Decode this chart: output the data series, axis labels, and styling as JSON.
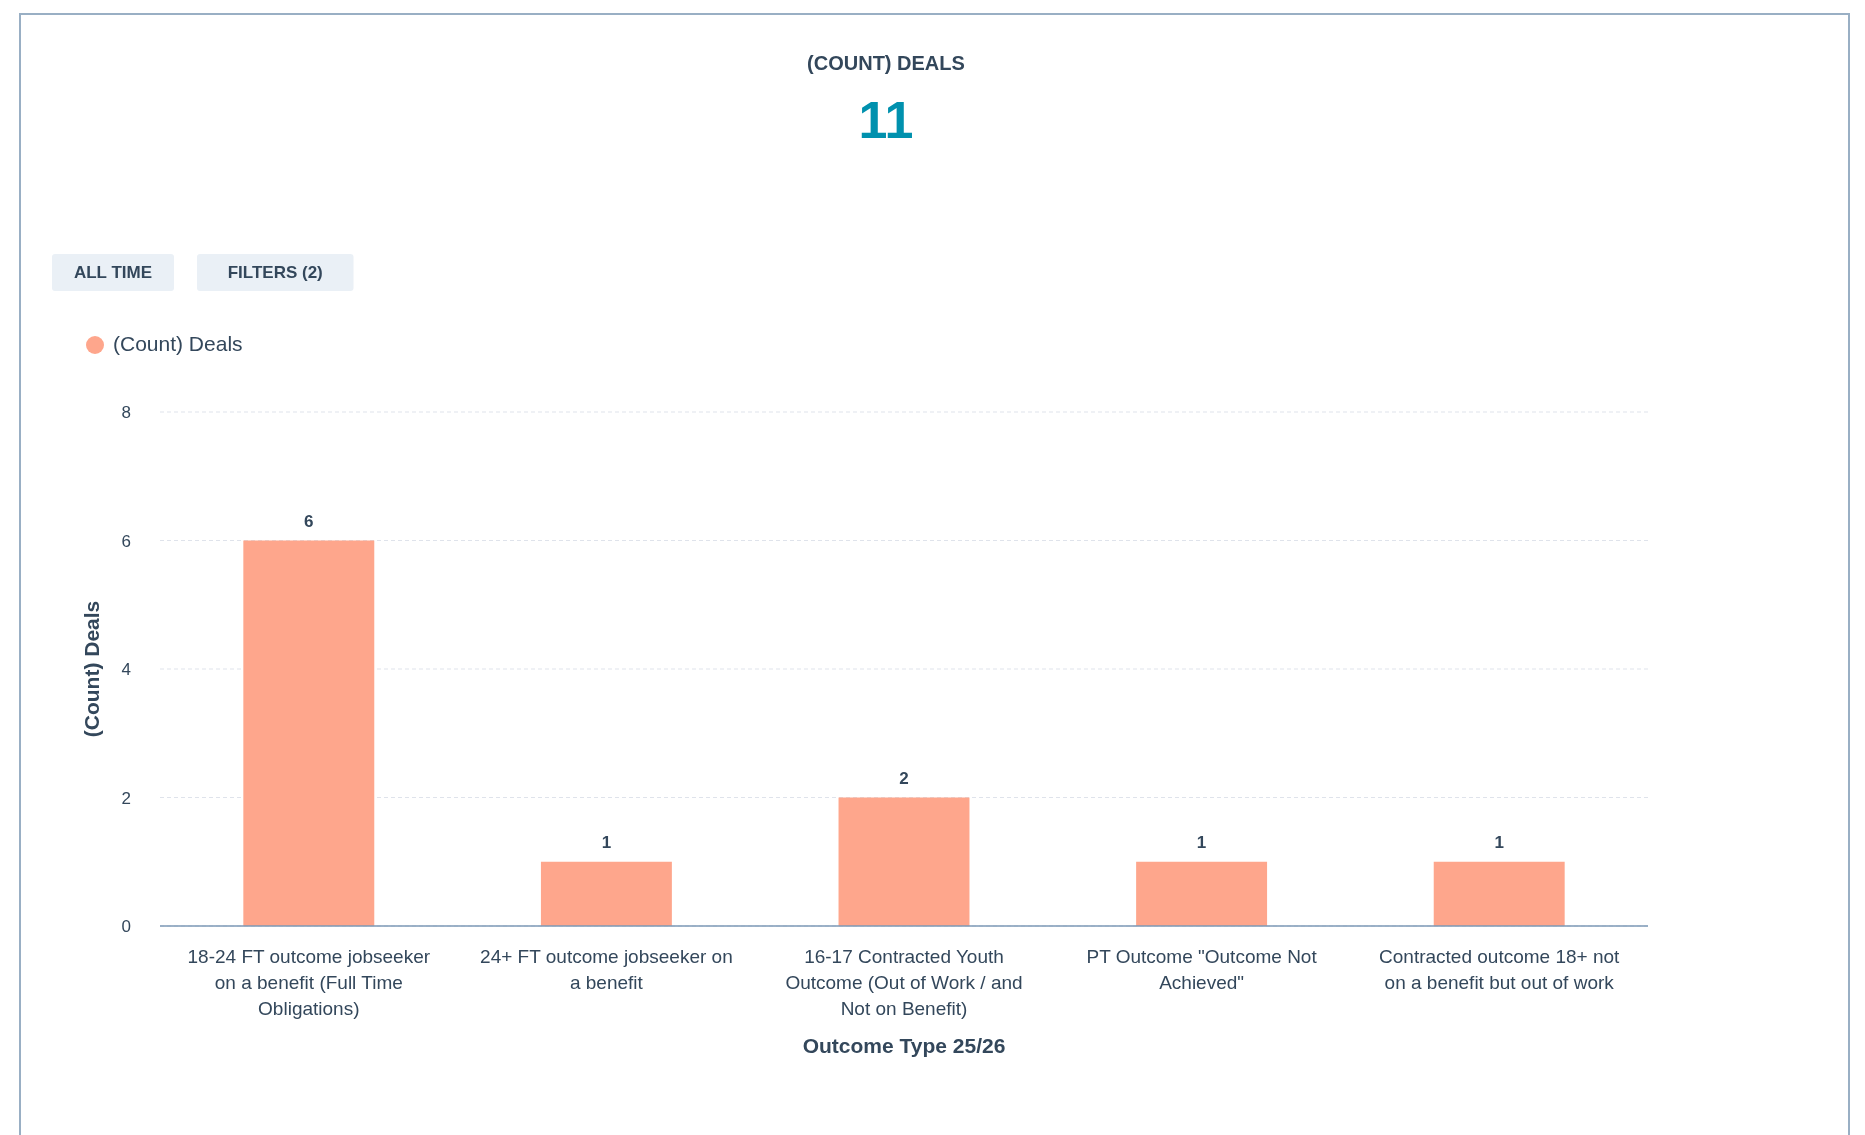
{
  "chart_data": {
    "type": "bar",
    "title": "(COUNT) DEALS",
    "subtitle": "11",
    "annotations": [
      "ALL TIME",
      "FILTERS (2)"
    ],
    "categories": [
      "18-24 FT outcome jobseeker on a benefit (Full Time Obligations)",
      "24+ FT outcome jobseeker on a benefit",
      "16-17 Contracted Youth Outcome (Out of Work / and Not on Benefit)",
      "PT Outcome \"Outcome Not Achieved\"",
      "Contracted outcome 18+ not on a benefit but out of work"
    ],
    "series": [
      {
        "name": "(Count) Deals",
        "color": "#fea68c",
        "values": [
          6,
          1,
          2,
          1,
          1
        ]
      }
    ],
    "xlabel": "Outcome Type 25/26",
    "ylabel": "(Count) Deals",
    "ylim": [
      0,
      8
    ],
    "yticks": [
      0,
      2,
      4,
      6,
      8
    ],
    "grid": "y",
    "legend": "top left",
    "data_labels": true
  }
}
